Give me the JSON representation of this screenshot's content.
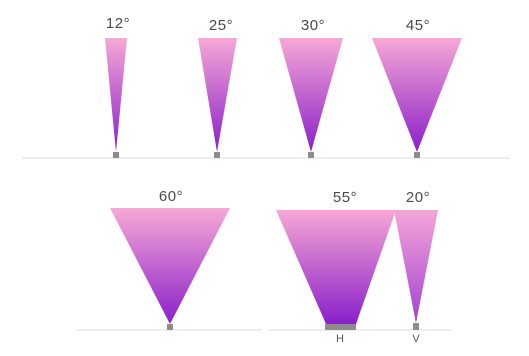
{
  "colors": {
    "beam_top": "#f7a8d6",
    "beam_bottom": "#8a1fc9",
    "baseline": "#dddddd",
    "led_base": "#8c8c8c"
  },
  "top_row": [
    {
      "angle": "12°"
    },
    {
      "angle": "25°"
    },
    {
      "angle": "30°"
    },
    {
      "angle": "45°"
    }
  ],
  "bottom_row": {
    "wide": {
      "angle": "60°"
    },
    "elliptical_h": {
      "angle": "55°",
      "axis": "H"
    },
    "elliptical_v": {
      "angle": "20°",
      "axis": "V"
    }
  }
}
